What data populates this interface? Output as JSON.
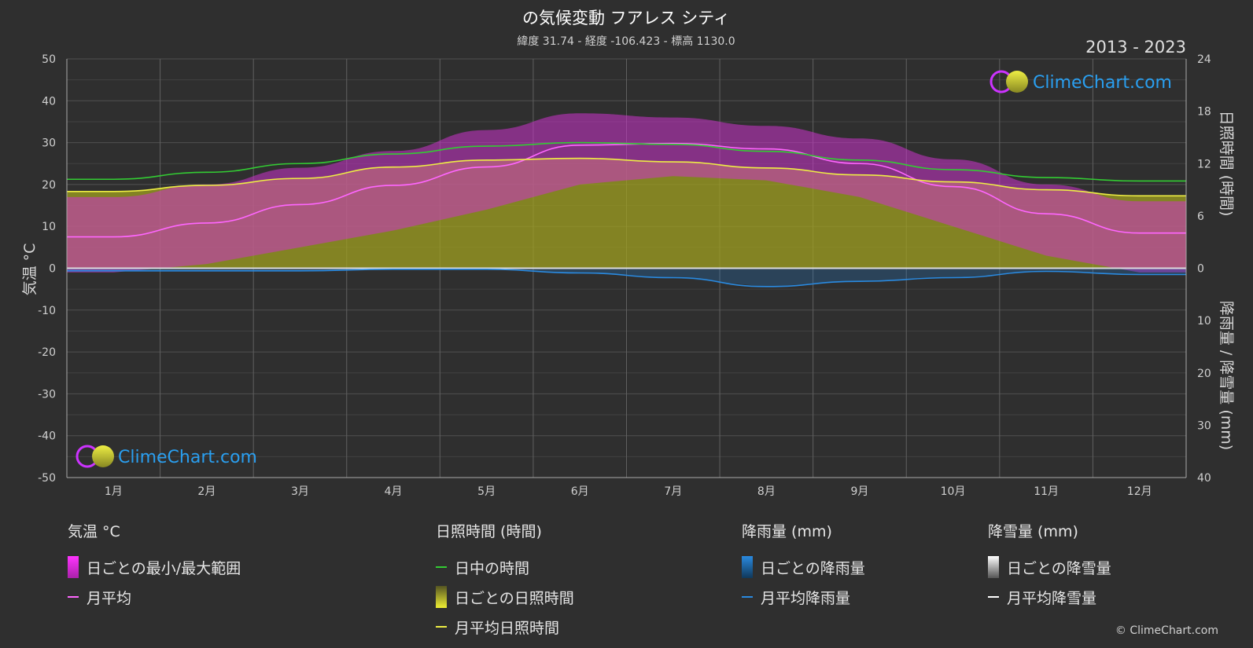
{
  "chart_data": {
    "type": "area",
    "title": "の気候変動 フアレス シティ",
    "subtitle": "緯度 31.74 - 経度 -106.423 - 標高 1130.0",
    "period": "2013 - 2023",
    "brand": "ClimeChart.com",
    "copyright": "© ClimeChart.com",
    "categories": [
      "1月",
      "2月",
      "3月",
      "4月",
      "5月",
      "6月",
      "7月",
      "8月",
      "9月",
      "10月",
      "11月",
      "12月"
    ],
    "left_axis": {
      "label": "気温 °C",
      "min": -50,
      "max": 50,
      "ticks": [
        "50",
        "40",
        "30",
        "20",
        "10",
        "0",
        "-10",
        "-20",
        "-30",
        "-40",
        "-50"
      ]
    },
    "right_axis_sun": {
      "label": "日照時間 (時間)",
      "min": 0,
      "max": 24,
      "ticks": [
        "24",
        "18",
        "12",
        "6",
        "0"
      ]
    },
    "right_axis_rain": {
      "label": "降雨量 / 降雪量 (mm)",
      "min": 0,
      "max": 40,
      "ticks": [
        "0",
        "10",
        "20",
        "30",
        "40"
      ]
    },
    "series": [
      {
        "name": "月平均",
        "group": "temp",
        "color": "#ff66ff",
        "values": [
          7.5,
          10.8,
          15.2,
          19.8,
          24.2,
          29.4,
          29.8,
          28.5,
          25.0,
          19.5,
          13.0,
          8.4
        ]
      },
      {
        "name": "日中の時間",
        "group": "sun",
        "color": "#33cc33",
        "values": [
          10.2,
          11.0,
          12.0,
          13.1,
          14.0,
          14.4,
          14.2,
          13.4,
          12.4,
          11.3,
          10.4,
          10.0
        ]
      },
      {
        "name": "月平均日照時間",
        "group": "sun",
        "color": "#eeee44",
        "values": [
          8.8,
          9.5,
          10.3,
          11.6,
          12.4,
          12.6,
          12.2,
          11.5,
          10.7,
          9.9,
          9.0,
          8.3
        ]
      },
      {
        "name": "月平均降雨量",
        "group": "rain",
        "color": "#2a8ae0",
        "values": [
          0.5,
          0.5,
          0.5,
          0.2,
          0.2,
          0.9,
          1.8,
          3.5,
          2.5,
          1.8,
          0.6,
          1.2
        ]
      },
      {
        "name": "月平均降雪量",
        "group": "snow",
        "color": "#ffffff",
        "values": [
          0,
          0,
          0,
          0,
          0,
          0,
          0,
          0,
          0,
          0,
          0,
          0
        ]
      }
    ],
    "daily_range": {
      "name": "日ごとの最小/最大範囲",
      "max": [
        17,
        20,
        24,
        28,
        33,
        37,
        36,
        34,
        31,
        26,
        20,
        16
      ],
      "min": [
        -1,
        1,
        5,
        9,
        14,
        20,
        22,
        21,
        17,
        10,
        3,
        -1
      ]
    },
    "colors": {
      "background": "#2f2f2f",
      "grid": "#555555",
      "temp_range": "#cc33cc",
      "sunshine": "#a0a020",
      "rain": "#1e7fd8",
      "title": "#ffffff"
    }
  },
  "legend": {
    "temp": {
      "title": "気温 °C",
      "items": [
        "日ごとの最小/最大範囲",
        "月平均"
      ]
    },
    "sun": {
      "title": "日照時間 (時間)",
      "items": [
        "日中の時間",
        "日ごとの日照時間",
        "月平均日照時間"
      ]
    },
    "rain": {
      "title": "降雨量 (mm)",
      "items": [
        "日ごとの降雨量",
        "月平均降雨量"
      ]
    },
    "snow": {
      "title": "降雪量 (mm)",
      "items": [
        "日ごとの降雪量",
        "月平均降雪量"
      ]
    }
  }
}
